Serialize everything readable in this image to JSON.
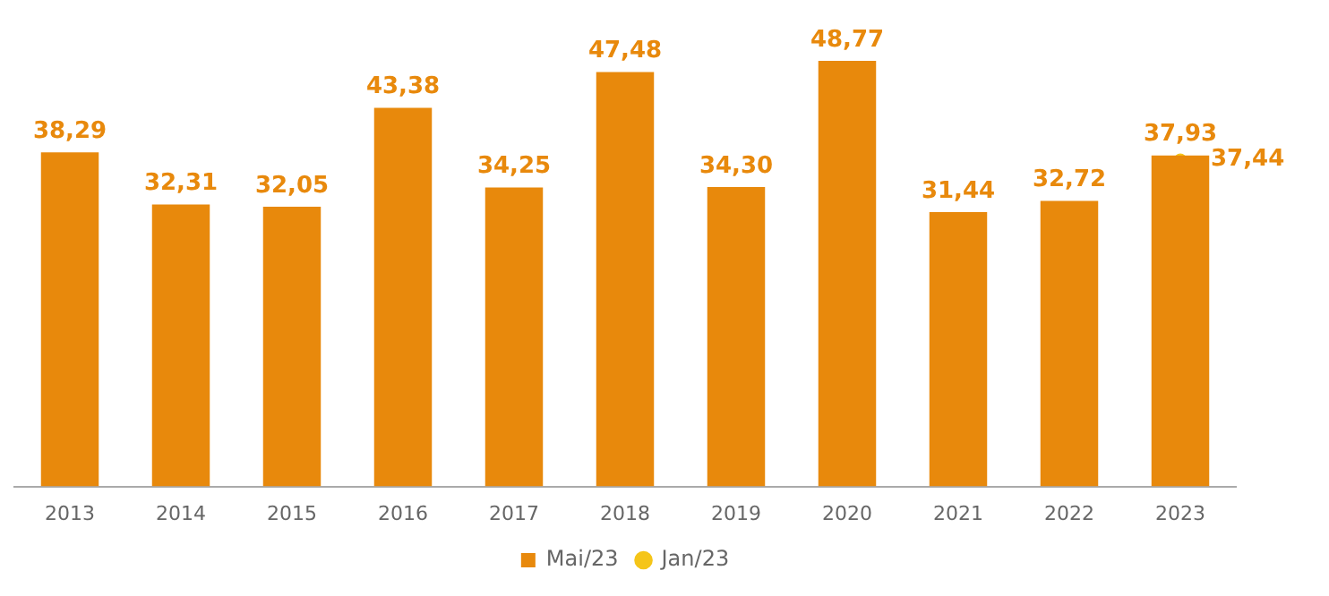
{
  "chart_data": {
    "type": "bar",
    "categories": [
      "2013",
      "2014",
      "2015",
      "2016",
      "2017",
      "2018",
      "2019",
      "2020",
      "2021",
      "2022",
      "2023"
    ],
    "series": [
      {
        "name": "Mai/23",
        "color": "#e8890c",
        "values": [
          38.29,
          32.31,
          32.05,
          43.38,
          34.25,
          47.48,
          34.3,
          48.77,
          31.44,
          32.72,
          37.93
        ],
        "value_labels": [
          "38,29",
          "32,31",
          "32,05",
          "43,38",
          "34,25",
          "47,48",
          "34,30",
          "48,77",
          "31,44",
          "32,72",
          "37,93"
        ]
      },
      {
        "name": "Jan/23",
        "type": "scatter",
        "color": "#f5c518",
        "marker": "circle",
        "values": [
          null,
          null,
          null,
          null,
          null,
          null,
          null,
          null,
          null,
          null,
          37.44
        ],
        "value_labels": [
          null,
          null,
          null,
          null,
          null,
          null,
          null,
          null,
          null,
          null,
          "37,44"
        ]
      }
    ],
    "legend": "bottom",
    "grid": false,
    "tick_labels": "x"
  }
}
